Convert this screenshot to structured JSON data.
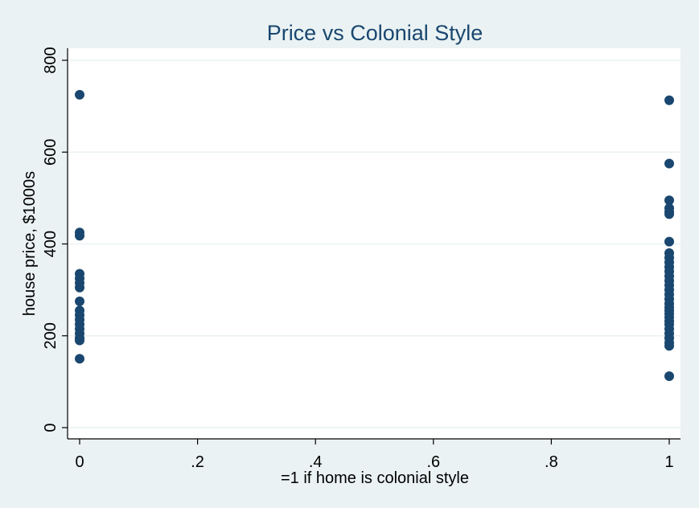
{
  "chart_data": {
    "type": "scatter",
    "title": "Price vs Colonial Style",
    "xlabel": "=1 if home is colonial style",
    "ylabel": "house price, $1000s",
    "xlim": [
      0,
      1
    ],
    "ylim": [
      0,
      800
    ],
    "x_ticks": [
      {
        "value": 0,
        "label": "0"
      },
      {
        "value": 0.2,
        "label": ".2"
      },
      {
        "value": 0.4,
        "label": ".4"
      },
      {
        "value": 0.6,
        "label": ".6"
      },
      {
        "value": 0.8,
        "label": ".8"
      },
      {
        "value": 1,
        "label": "1"
      }
    ],
    "y_ticks": [
      {
        "value": 0,
        "label": "0"
      },
      {
        "value": 200,
        "label": "200"
      },
      {
        "value": 400,
        "label": "400"
      },
      {
        "value": 600,
        "label": "600"
      },
      {
        "value": 800,
        "label": "800"
      }
    ],
    "grid": true,
    "legend": "none",
    "colors": {
      "marker": "#1a476f",
      "plot_background": "#ffffff",
      "outer_background": "#eaf2f3",
      "gridline": "#eaf2f3"
    },
    "series": [
      {
        "values": [
          {
            "x": 0,
            "y": 725
          },
          {
            "x": 0,
            "y": 425
          },
          {
            "x": 0,
            "y": 418
          },
          {
            "x": 0,
            "y": 335
          },
          {
            "x": 0,
            "y": 325
          },
          {
            "x": 0,
            "y": 315
          },
          {
            "x": 0,
            "y": 305
          },
          {
            "x": 0,
            "y": 275
          },
          {
            "x": 0,
            "y": 255
          },
          {
            "x": 0,
            "y": 245
          },
          {
            "x": 0,
            "y": 235
          },
          {
            "x": 0,
            "y": 225
          },
          {
            "x": 0,
            "y": 215
          },
          {
            "x": 0,
            "y": 205
          },
          {
            "x": 0,
            "y": 195
          },
          {
            "x": 0,
            "y": 190
          },
          {
            "x": 0,
            "y": 150
          },
          {
            "x": 1,
            "y": 713
          },
          {
            "x": 1,
            "y": 575
          },
          {
            "x": 1,
            "y": 495
          },
          {
            "x": 1,
            "y": 478
          },
          {
            "x": 1,
            "y": 470
          },
          {
            "x": 1,
            "y": 465
          },
          {
            "x": 1,
            "y": 405
          },
          {
            "x": 1,
            "y": 380
          },
          {
            "x": 1,
            "y": 370
          },
          {
            "x": 1,
            "y": 360
          },
          {
            "x": 1,
            "y": 350
          },
          {
            "x": 1,
            "y": 340
          },
          {
            "x": 1,
            "y": 330
          },
          {
            "x": 1,
            "y": 320
          },
          {
            "x": 1,
            "y": 310
          },
          {
            "x": 1,
            "y": 300
          },
          {
            "x": 1,
            "y": 290
          },
          {
            "x": 1,
            "y": 280
          },
          {
            "x": 1,
            "y": 270
          },
          {
            "x": 1,
            "y": 262
          },
          {
            "x": 1,
            "y": 255
          },
          {
            "x": 1,
            "y": 248
          },
          {
            "x": 1,
            "y": 240
          },
          {
            "x": 1,
            "y": 232
          },
          {
            "x": 1,
            "y": 225
          },
          {
            "x": 1,
            "y": 215
          },
          {
            "x": 1,
            "y": 205
          },
          {
            "x": 1,
            "y": 195
          },
          {
            "x": 1,
            "y": 185
          },
          {
            "x": 1,
            "y": 178
          },
          {
            "x": 1,
            "y": 112
          }
        ]
      }
    ]
  }
}
